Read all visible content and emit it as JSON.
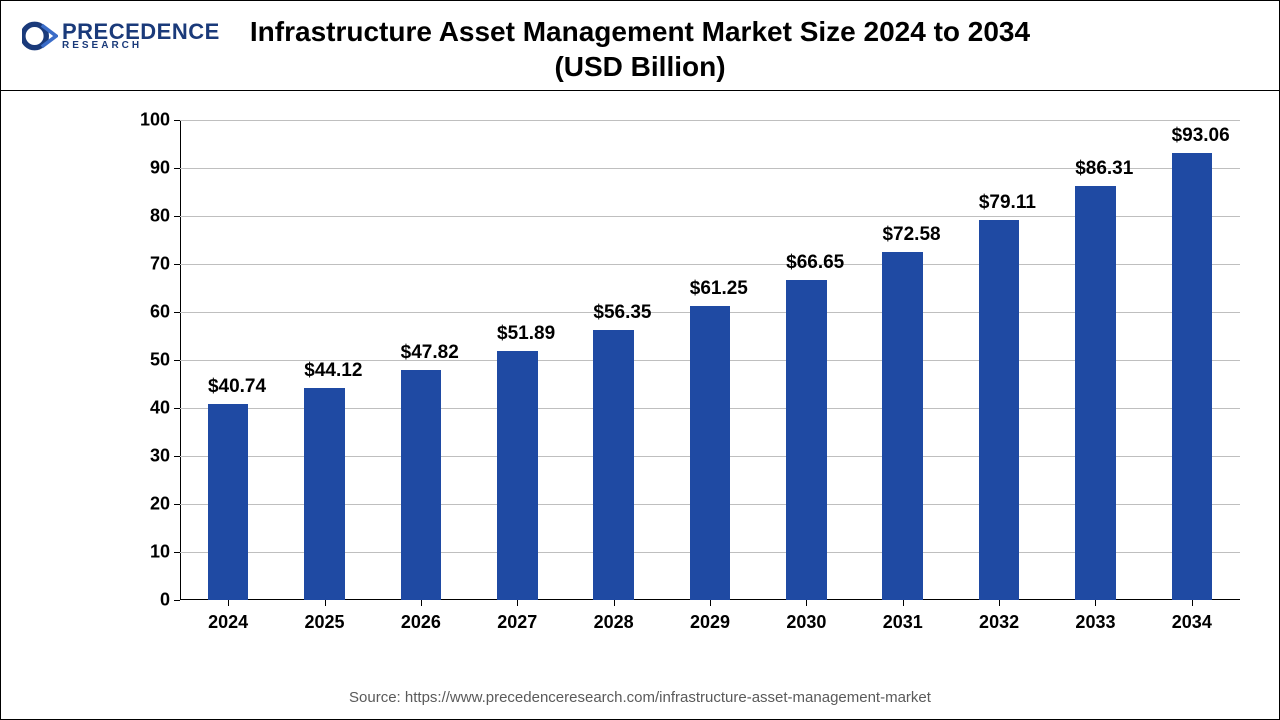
{
  "logo": {
    "main": "PRECEDENCE",
    "sub": "RESEARCH",
    "icon_color": "#1a3a7a",
    "text_color": "#1a3a7a"
  },
  "title": {
    "line1": "Infrastructure Asset Management Market Size 2024 to 2034",
    "line2": "(USD Billion)",
    "fontsize": 28,
    "color": "#000000"
  },
  "chart": {
    "type": "bar",
    "categories": [
      "2024",
      "2025",
      "2026",
      "2027",
      "2028",
      "2029",
      "2030",
      "2031",
      "2032",
      "2033",
      "2034"
    ],
    "values": [
      40.74,
      44.12,
      47.82,
      51.89,
      56.35,
      61.25,
      66.65,
      72.58,
      79.11,
      86.31,
      93.06
    ],
    "value_labels": [
      "$40.74",
      "$44.12",
      "$47.82",
      "$51.89",
      "$56.35",
      "$61.25",
      "$66.65",
      "$72.58",
      "$79.11",
      "$86.31",
      "$93.06"
    ],
    "bar_color": "#1f4aa3",
    "ylim": [
      0,
      100
    ],
    "ytick_step": 10,
    "yticks": [
      0,
      10,
      20,
      30,
      40,
      50,
      60,
      70,
      80,
      90,
      100
    ],
    "grid_color": "#bfbfbf",
    "axis_color": "#000000",
    "background_color": "#ffffff",
    "bar_width_ratio": 0.42,
    "tick_fontsize": 18,
    "value_fontsize": 19,
    "font_weight": "700"
  },
  "source": {
    "text": "Source: https://www.precedenceresearch.com/infrastructure-asset-management-market",
    "fontsize": 15,
    "color": "#5a5a5a"
  }
}
